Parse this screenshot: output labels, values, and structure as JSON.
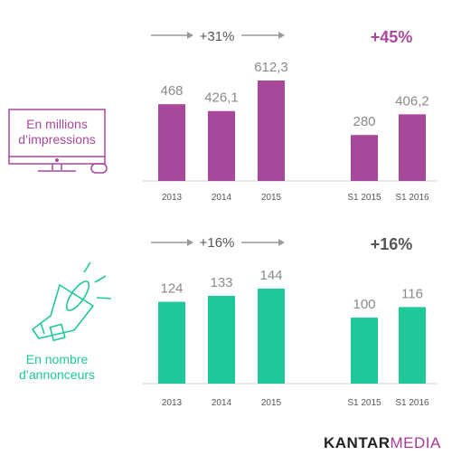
{
  "colors": {
    "purple": "#a8489b",
    "teal": "#1fc89a",
    "gray_text": "#8a8a8a",
    "axis": "#cfcfcf",
    "arrow": "#9a9a9a"
  },
  "panels": [
    {
      "label_line1": "En millions",
      "label_line2": "d’impressions",
      "growth_label": "+31%",
      "highlight_label": "+45%",
      "highlight_color": "#a8489b",
      "icon": "computer-monitor-icon"
    },
    {
      "label_line1": "En nombre",
      "label_line2": "d’annonceurs",
      "growth_label": "+16%",
      "highlight_label": "+16%",
      "highlight_color": "#555555",
      "icon": "megaphone-icon"
    }
  ],
  "chart_data": [
    {
      "type": "bar",
      "categories": [
        "2013",
        "2014",
        "2015",
        "S1 2015",
        "S1 2016"
      ],
      "values": [
        468,
        426.1,
        612.3,
        280,
        406.2
      ],
      "value_labels": [
        "468",
        "426,1",
        "612,3",
        "280",
        "406,2"
      ],
      "color": "#a8489b"
    },
    {
      "type": "bar",
      "categories": [
        "2013",
        "2014",
        "2015",
        "S1 2015",
        "S1 2016"
      ],
      "values": [
        124,
        133,
        144,
        100,
        116
      ],
      "value_labels": [
        "124",
        "133",
        "144",
        "100",
        "116"
      ],
      "color": "#1fc89a"
    }
  ],
  "logo": {
    "part1": "KANTAR",
    "part2": "MEDIA"
  }
}
